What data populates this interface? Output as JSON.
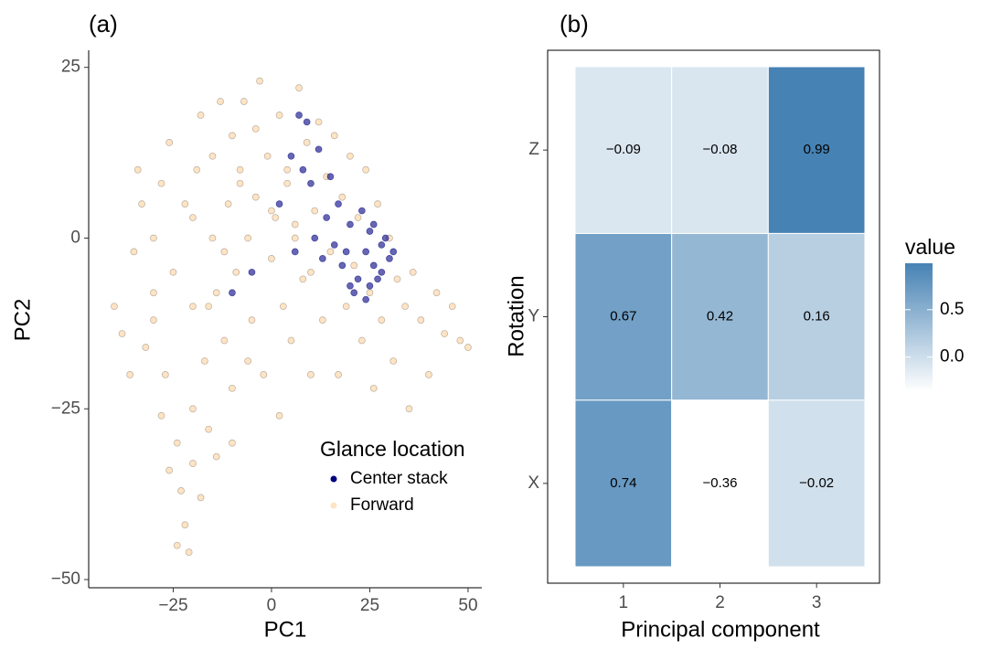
{
  "chart_data": [
    {
      "type": "scatter",
      "panel_label": "(a)",
      "x_label": "PC1",
      "y_label": "PC2",
      "xlim": [
        -46.5,
        53.5
      ],
      "ylim": [
        -51.2,
        27.5
      ],
      "xticks": [
        {
          "value": -25,
          "label": "−25"
        },
        0,
        25,
        50
      ],
      "yticks": [
        {
          "value": -50,
          "label": "−50"
        },
        {
          "value": -25,
          "label": "−25"
        },
        0,
        25
      ],
      "legend_title": "Glance location",
      "series": [
        {
          "name": "Forward",
          "color": "#ffe4c4",
          "x": [
            -40,
            -38,
            -35,
            -33,
            -30,
            -30,
            -28,
            -27,
            -26,
            -25,
            -24,
            -23,
            -22,
            -21,
            -20,
            -20,
            -20,
            -20,
            -19,
            -18,
            -17,
            -16,
            -15,
            -15,
            -14,
            -13,
            -12,
            -11,
            -10,
            -10,
            -9,
            -8,
            -7,
            -6,
            -5,
            -4,
            -3,
            -2,
            -1,
            0,
            1,
            2,
            3,
            4,
            5,
            6,
            7,
            8,
            9,
            10,
            11,
            12,
            13,
            14,
            15,
            16,
            17,
            18,
            19,
            20,
            21,
            22,
            23,
            24,
            25,
            26,
            27,
            28,
            30,
            31,
            32,
            34,
            35,
            36,
            38,
            40,
            42,
            44,
            46,
            48,
            50,
            -36,
            -32,
            -28,
            -26,
            -18,
            -14,
            -24,
            -22,
            -12,
            -8,
            -4,
            0,
            4,
            -16,
            -6,
            2,
            -30,
            -34,
            -10,
            6,
            10
          ],
          "y": [
            -10,
            -14,
            -2,
            5,
            -12,
            0,
            8,
            -20,
            14,
            -5,
            -30,
            -37,
            -42,
            -46,
            -33,
            -25,
            -10,
            3,
            10,
            18,
            -18,
            -28,
            0,
            12,
            -8,
            20,
            -15,
            5,
            15,
            -22,
            -5,
            10,
            20,
            0,
            -12,
            6,
            23,
            -20,
            12,
            -3,
            3,
            18,
            -10,
            8,
            -15,
            2,
            22,
            -6,
            14,
            -20,
            4,
            17,
            -12,
            9,
            -2,
            15,
            -20,
            6,
            -10,
            12,
            -4,
            3,
            -15,
            10,
            -8,
            -22,
            5,
            -12,
            0,
            -18,
            -6,
            -10,
            -25,
            -5,
            -12,
            -20,
            -8,
            -14,
            -10,
            -15,
            -16,
            -20,
            -16,
            -26,
            -34,
            -38,
            -32,
            -45,
            5,
            -2,
            8,
            16,
            4,
            10,
            -10,
            -18,
            -26,
            -8,
            10,
            -30,
            0,
            -5
          ]
        },
        {
          "name": "Center stack",
          "color": "#000080",
          "x": [
            5,
            8,
            10,
            12,
            14,
            16,
            18,
            20,
            22,
            24,
            25,
            26,
            27,
            28,
            29,
            30,
            31,
            20,
            17,
            13,
            15,
            9,
            7,
            11,
            21,
            23,
            19,
            25,
            -5,
            -10,
            2,
            6,
            26,
            28,
            24
          ],
          "y": [
            12,
            10,
            8,
            13,
            3,
            -1,
            -4,
            2,
            -6,
            -2,
            1,
            -4,
            -6,
            -1,
            0,
            -3,
            -2,
            -7,
            5,
            -3,
            9,
            17,
            18,
            0,
            -8,
            4,
            -2,
            -7,
            -5,
            -8,
            5,
            -2,
            2,
            -5,
            -9
          ]
        }
      ]
    },
    {
      "type": "heatmap",
      "panel_label": "(b)",
      "x_label": "Principal component",
      "y_label": "Rotation",
      "x_categories": [
        "1",
        "2",
        "3"
      ],
      "y_categories": [
        "X",
        "Y",
        "Z"
      ],
      "values": [
        [
          0.74,
          -0.36,
          -0.02
        ],
        [
          0.67,
          0.42,
          0.16
        ],
        [
          -0.09,
          -0.08,
          0.99
        ]
      ],
      "value_labels": [
        [
          "0.74",
          "−0.36",
          "−0.02"
        ],
        [
          "0.67",
          "0.42",
          "0.16"
        ],
        [
          "−0.09",
          "−0.08",
          "0.99"
        ]
      ],
      "colors": [
        "#ffffff",
        "#4682b4"
      ],
      "legend_title": "value",
      "legend_ticks": [
        {
          "value": 0,
          "label": "0.0"
        },
        0.5
      ]
    }
  ]
}
